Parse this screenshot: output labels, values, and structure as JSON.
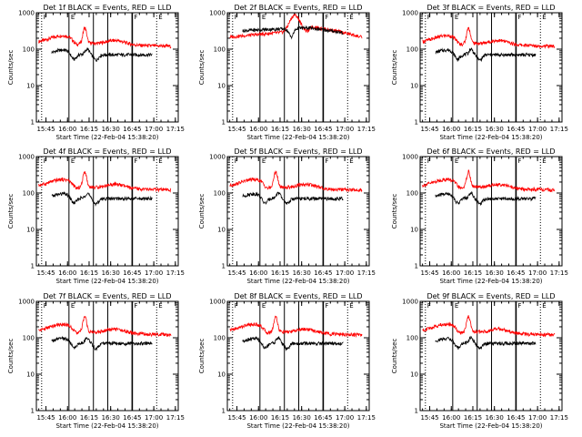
{
  "chart_data": [
    {
      "type": "line",
      "title": "Det 1f BLACK = Events, RED = LLD",
      "xlabel": "Start Time (22-Feb-04 15:38:20)",
      "ylabel": "Counts/sec",
      "yscale": "log",
      "ylim": [
        1,
        1000
      ],
      "yticks": [
        "1",
        "10",
        "100",
        "1000"
      ],
      "xticks": [
        "15:45",
        "16:00",
        "16:15",
        "16:30",
        "16:45",
        "17:00",
        "17:15"
      ],
      "markers": [
        "F",
        "E",
        "F",
        "E"
      ],
      "series": [
        {
          "color": "#ff0000",
          "profile": "A"
        },
        {
          "color": "#000000",
          "profile": "A"
        }
      ]
    },
    {
      "type": "line",
      "title": "Det 2f BLACK = Events, RED = LLD",
      "xlabel": "Start Time (22-Feb-04 15:38:20)",
      "ylabel": "Counts/sec",
      "yscale": "log",
      "ylim": [
        1,
        1000
      ],
      "yticks": [
        "1",
        "10",
        "100",
        "1000"
      ],
      "xticks": [
        "15:45",
        "16:00",
        "16:15",
        "16:30",
        "16:45",
        "17:00",
        "17:15"
      ],
      "markers": [
        "F",
        "E",
        "F",
        "E"
      ],
      "series": [
        {
          "color": "#ff0000",
          "profile": "B"
        },
        {
          "color": "#000000",
          "profile": "B"
        }
      ]
    },
    {
      "type": "line",
      "title": "Det 3f BLACK = Events, RED = LLD",
      "xlabel": "Start Time (22-Feb-04 15:38:20)",
      "ylabel": "Counts/sec",
      "yscale": "log",
      "ylim": [
        1,
        1000
      ],
      "yticks": [
        "1",
        "10",
        "100",
        "1000"
      ],
      "xticks": [
        "15:45",
        "16:00",
        "16:15",
        "16:30",
        "16:45",
        "17:00",
        "17:15"
      ],
      "markers": [
        "F",
        "E",
        "F",
        "E"
      ],
      "series": [
        {
          "color": "#ff0000",
          "profile": "A"
        },
        {
          "color": "#000000",
          "profile": "A"
        }
      ]
    },
    {
      "type": "line",
      "title": "Det 4f BLACK = Events, RED = LLD",
      "xlabel": "Start Time (22-Feb-04 15:38:20)",
      "ylabel": "Counts/sec",
      "yscale": "log",
      "ylim": [
        1,
        1000
      ],
      "yticks": [
        "1",
        "10",
        "100",
        "1000"
      ],
      "xticks": [
        "15:45",
        "16:00",
        "16:15",
        "16:30",
        "16:45",
        "17:00",
        "17:15"
      ],
      "markers": [
        "F",
        "E",
        "F",
        "E"
      ],
      "series": [
        {
          "color": "#ff0000",
          "profile": "A"
        },
        {
          "color": "#000000",
          "profile": "A"
        }
      ]
    },
    {
      "type": "line",
      "title": "Det 5f BLACK = Events, RED = LLD",
      "xlabel": "Start Time (22-Feb-04 15:38:20)",
      "ylabel": "Counts/sec",
      "yscale": "log",
      "ylim": [
        1,
        1000
      ],
      "yticks": [
        "1",
        "10",
        "100",
        "1000"
      ],
      "xticks": [
        "15:45",
        "16:00",
        "16:15",
        "16:30",
        "16:45",
        "17:00",
        "17:15"
      ],
      "markers": [
        "F",
        "E",
        "F",
        "E"
      ],
      "series": [
        {
          "color": "#ff0000",
          "profile": "A"
        },
        {
          "color": "#000000",
          "profile": "A"
        }
      ]
    },
    {
      "type": "line",
      "title": "Det 6f BLACK = Events, RED = LLD",
      "xlabel": "Start Time (22-Feb-04 15:38:20)",
      "ylabel": "Counts/sec",
      "yscale": "log",
      "ylim": [
        1,
        1000
      ],
      "yticks": [
        "1",
        "10",
        "100",
        "1000"
      ],
      "xticks": [
        "15:45",
        "16:00",
        "16:15",
        "16:30",
        "16:45",
        "17:00",
        "17:15"
      ],
      "markers": [
        "F",
        "E",
        "F",
        "E"
      ],
      "series": [
        {
          "color": "#ff0000",
          "profile": "A"
        },
        {
          "color": "#000000",
          "profile": "A"
        }
      ]
    },
    {
      "type": "line",
      "title": "Det 7f BLACK = Events, RED = LLD",
      "xlabel": "Start Time (22-Feb-04 15:38:20)",
      "ylabel": "Counts/sec",
      "yscale": "log",
      "ylim": [
        1,
        1000
      ],
      "yticks": [
        "1",
        "10",
        "100",
        "1000"
      ],
      "xticks": [
        "15:45",
        "16:00",
        "16:15",
        "16:30",
        "16:45",
        "17:00",
        "17:15"
      ],
      "markers": [
        "F",
        "E",
        "F",
        "E"
      ],
      "series": [
        {
          "color": "#ff0000",
          "profile": "A"
        },
        {
          "color": "#000000",
          "profile": "A"
        }
      ]
    },
    {
      "type": "line",
      "title": "Det 8f BLACK = Events, RED = LLD",
      "xlabel": "Start Time (22-Feb-04 15:38:20)",
      "ylabel": "Counts/sec",
      "yscale": "log",
      "ylim": [
        1,
        1000
      ],
      "yticks": [
        "1",
        "10",
        "100",
        "1000"
      ],
      "xticks": [
        "15:45",
        "16:00",
        "16:15",
        "16:30",
        "16:45",
        "17:00",
        "17:15"
      ],
      "markers": [
        "F",
        "E",
        "F",
        "E"
      ],
      "series": [
        {
          "color": "#ff0000",
          "profile": "A"
        },
        {
          "color": "#000000",
          "profile": "A"
        }
      ]
    },
    {
      "type": "line",
      "title": "Det 9f BLACK = Events, RED = LLD",
      "xlabel": "Start Time (22-Feb-04 15:38:20)",
      "ylabel": "Counts/sec",
      "yscale": "log",
      "ylim": [
        1,
        1000
      ],
      "yticks": [
        "1",
        "10",
        "100",
        "1000"
      ],
      "xticks": [
        "15:45",
        "16:00",
        "16:15",
        "16:30",
        "16:45",
        "17:00",
        "17:15"
      ],
      "markers": [
        "F",
        "E",
        "F",
        "E"
      ],
      "series": [
        {
          "color": "#ff0000",
          "profile": "A"
        },
        {
          "color": "#000000",
          "profile": "A"
        }
      ]
    }
  ]
}
